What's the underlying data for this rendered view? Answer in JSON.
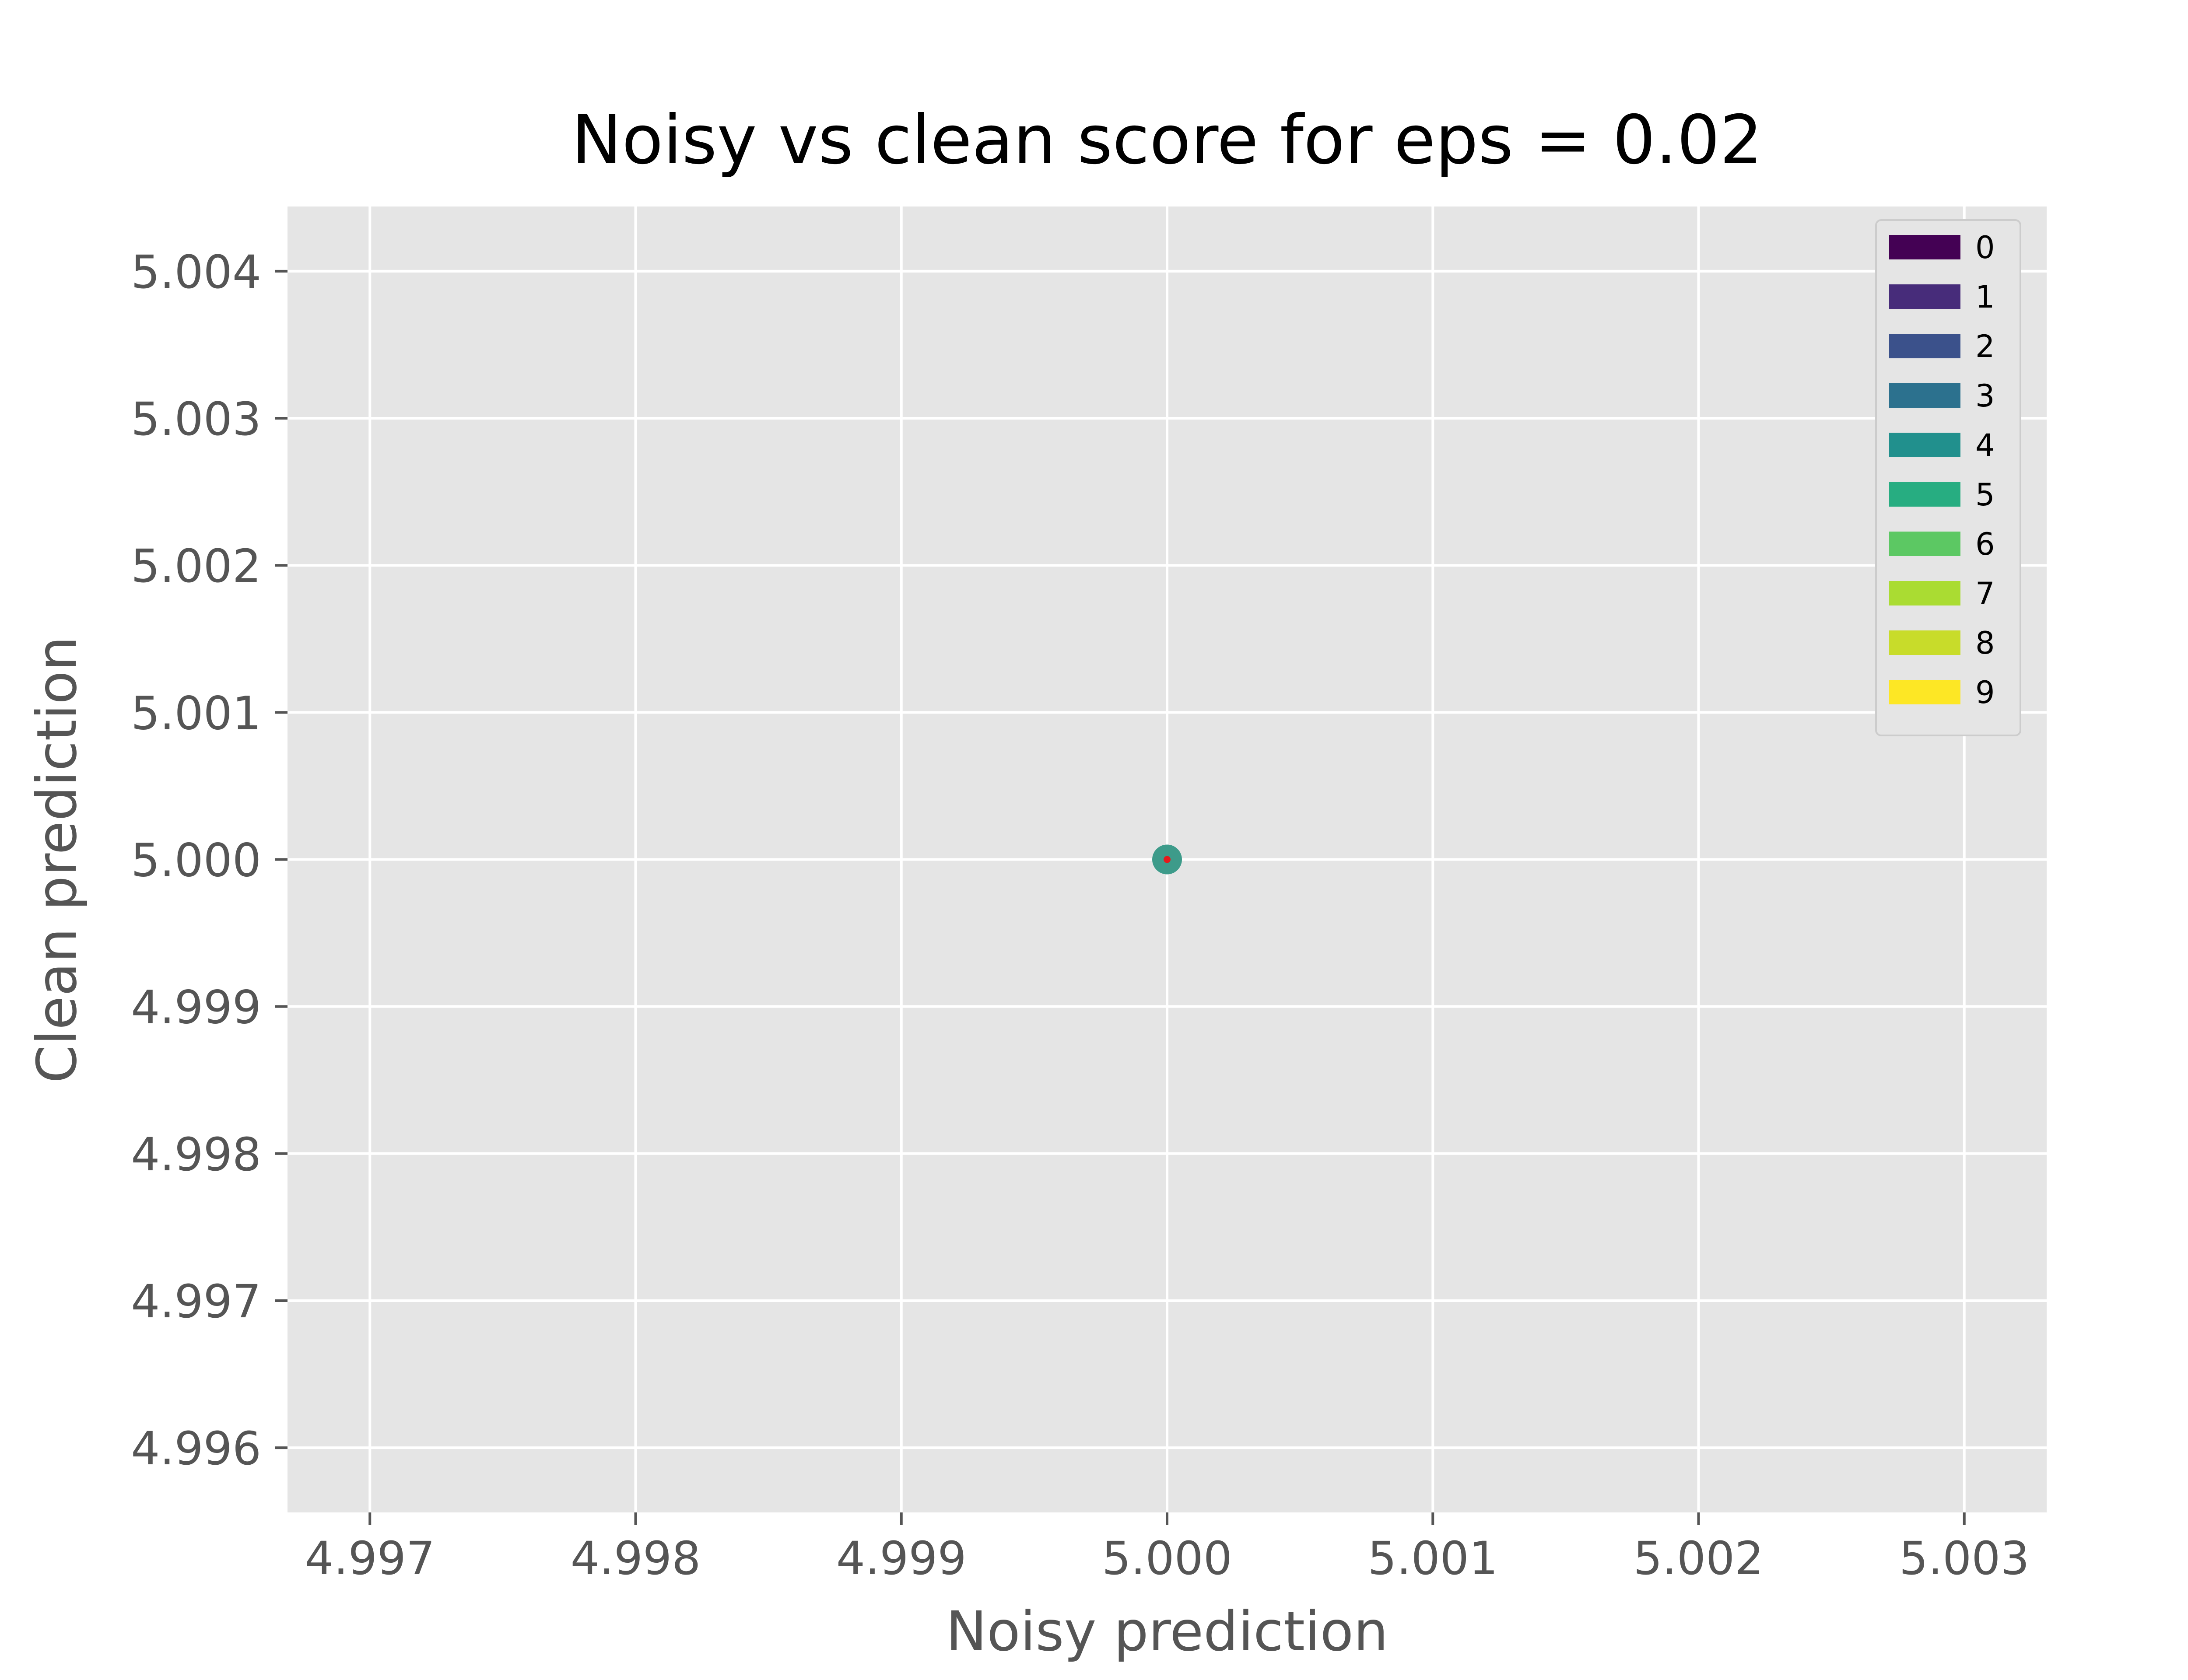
{
  "chart_data": {
    "type": "scatter",
    "title": "Noisy vs clean score for eps = 0.02",
    "xlabel": "Noisy prediction",
    "ylabel": "Clean prediction",
    "xlim": [
      4.99669,
      5.00331
    ],
    "ylim": [
      4.99556,
      5.00444
    ],
    "x_ticks": [
      "4.997",
      "4.998",
      "4.999",
      "5.000",
      "5.001",
      "5.002",
      "5.003"
    ],
    "y_ticks": [
      "4.996",
      "4.997",
      "4.998",
      "4.999",
      "5.000",
      "5.001",
      "5.002",
      "5.003",
      "5.004"
    ],
    "grid": true,
    "legend_position": "top-right",
    "legend": [
      {
        "label": "0",
        "color": "#440154"
      },
      {
        "label": "1",
        "color": "#472c7a"
      },
      {
        "label": "2",
        "color": "#3b518b"
      },
      {
        "label": "3",
        "color": "#2c718e"
      },
      {
        "label": "4",
        "color": "#21908d"
      },
      {
        "label": "5",
        "color": "#27ad81"
      },
      {
        "label": "6",
        "color": "#5cc863"
      },
      {
        "label": "7",
        "color": "#aadc32"
      },
      {
        "label": "8",
        "color": "#c8dc2a"
      },
      {
        "label": "9",
        "color": "#fde725"
      }
    ],
    "points": [
      {
        "x": 5.0,
        "y": 5.0,
        "label": "5",
        "color": "#3d9b8a"
      }
    ],
    "reference_points": [
      {
        "x": 5.0,
        "y": 5.0,
        "color": "#e41a1c"
      }
    ],
    "colors": {
      "plot_background": "#e5e5e5",
      "grid": "#ffffff",
      "tick_text": "#555555",
      "title_text": "#000000",
      "legend_background": "#e5e5e5",
      "legend_border": "#cccccc"
    }
  }
}
